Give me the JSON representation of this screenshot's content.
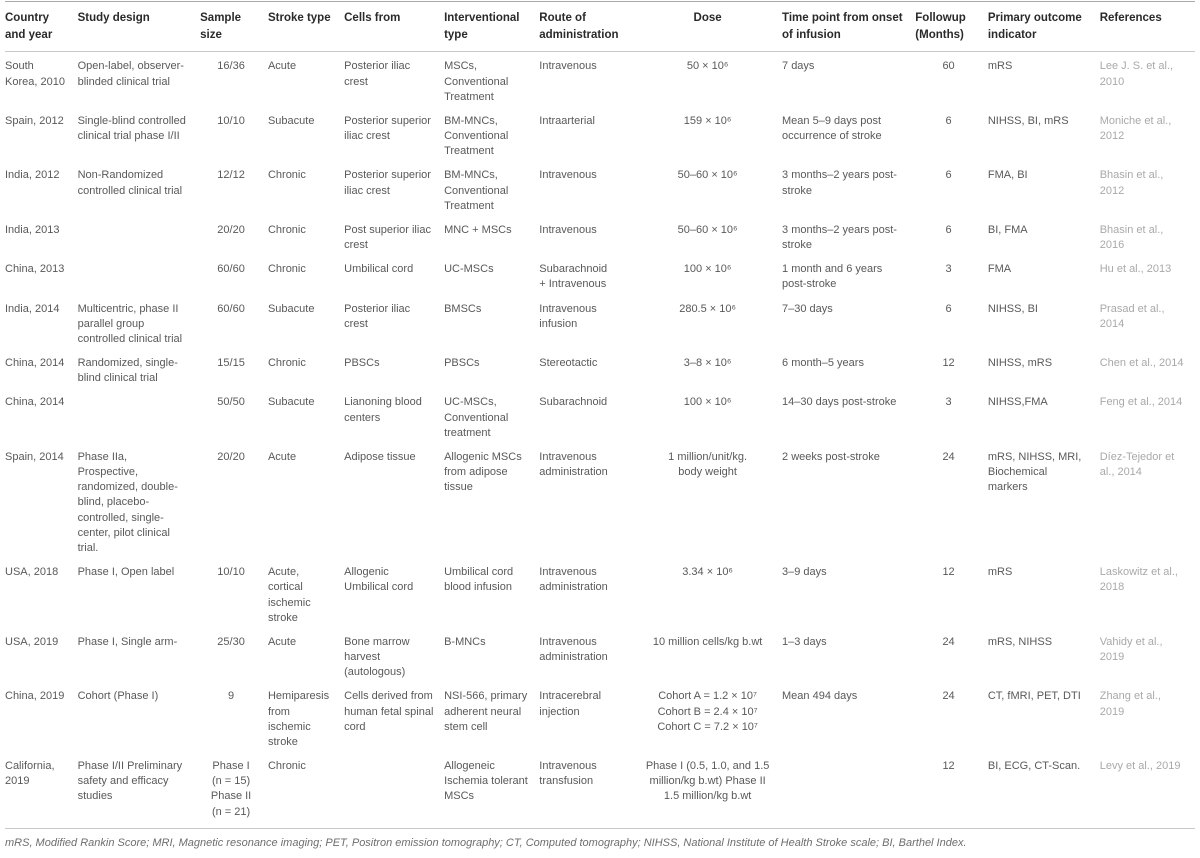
{
  "table": {
    "columns": [
      {
        "key": "country",
        "label": "Country and year"
      },
      {
        "key": "design",
        "label": "Study design"
      },
      {
        "key": "sample",
        "label": "Sample size"
      },
      {
        "key": "stroke",
        "label": "Stroke type"
      },
      {
        "key": "cells",
        "label": "Cells from"
      },
      {
        "key": "intervention",
        "label": "Interventional type"
      },
      {
        "key": "route",
        "label": "Route of administration"
      },
      {
        "key": "dose",
        "label": "Dose"
      },
      {
        "key": "time",
        "label": "Time point from onset of infusion"
      },
      {
        "key": "followup",
        "label": "Followup (Months)"
      },
      {
        "key": "outcome",
        "label": "Primary outcome indicator"
      },
      {
        "key": "reference",
        "label": "References"
      }
    ],
    "rows": [
      {
        "country": "South Korea, 2010",
        "design": "Open-label, observer-blinded clinical trial",
        "sample": "16/36",
        "stroke": "Acute",
        "cells": "Posterior iliac crest",
        "intervention": "MSCs, Conventional Treatment",
        "route": "Intravenous",
        "dose": "50 × 10⁶",
        "time": "7 days",
        "followup": "60",
        "outcome": "mRS",
        "reference": "Lee J. S. et al., 2010"
      },
      {
        "country": "Spain, 2012",
        "design": "Single-blind controlled clinical trial phase I/II",
        "sample": "10/10",
        "stroke": "Subacute",
        "cells": "Posterior superior iliac crest",
        "intervention": "BM-MNCs, Conventional Treatment",
        "route": "Intraarterial",
        "dose": "159 × 10⁶",
        "time": "Mean 5–9 days post occurrence of stroke",
        "followup": "6",
        "outcome": "NIHSS, BI, mRS",
        "reference": "Moniche et al., 2012"
      },
      {
        "country": "India, 2012",
        "design": "Non-Randomized controlled clinical trial",
        "sample": "12/12",
        "stroke": "Chronic",
        "cells": "Posterior superior iliac crest",
        "intervention": "BM-MNCs, Conventional Treatment",
        "route": "Intravenous",
        "dose": "50–60 × 10⁶",
        "time": "3 months–2 years post-stroke",
        "followup": "6",
        "outcome": "FMA, BI",
        "reference": "Bhasin et al., 2012"
      },
      {
        "country": "India, 2013",
        "design": "",
        "sample": "20/20",
        "stroke": "Chronic",
        "cells": "Post superior iliac crest",
        "intervention": "MNC + MSCs",
        "route": "Intravenous",
        "dose": "50–60 × 10⁶",
        "time": "3 months–2 years post-stroke",
        "followup": "6",
        "outcome": "BI, FMA",
        "reference": "Bhasin et al., 2016"
      },
      {
        "country": "China, 2013",
        "design": "",
        "sample": "60/60",
        "stroke": "Chronic",
        "cells": "Umbilical cord",
        "intervention": "UC-MSCs",
        "route": "Subarachnoid\n+ Intravenous",
        "dose": "100 × 10⁶",
        "time": "1 month and 6 years post-stroke",
        "followup": "3",
        "outcome": "FMA",
        "reference": "Hu et al., 2013"
      },
      {
        "country": "India, 2014",
        "design": "Multicentric, phase II parallel group controlled clinical trial",
        "sample": "60/60",
        "stroke": "Subacute",
        "cells": "Posterior iliac crest",
        "intervention": "BMSCs",
        "route": "Intravenous infusion",
        "dose": "280.5 × 10⁶",
        "time": "7–30 days",
        "followup": "6",
        "outcome": "NIHSS, BI",
        "reference": "Prasad et al., 2014"
      },
      {
        "country": "China, 2014",
        "design": "Randomized, single-blind clinical trial",
        "sample": "15/15",
        "stroke": "Chronic",
        "cells": "PBSCs",
        "intervention": "PBSCs",
        "route": "Stereotactic",
        "dose": "3–8 × 10⁶",
        "time": "6 month–5 years",
        "followup": "12",
        "outcome": "NIHSS, mRS",
        "reference": "Chen et al., 2014"
      },
      {
        "country": "China, 2014",
        "design": "",
        "sample": "50/50",
        "stroke": "Subacute",
        "cells": "Lianoning blood centers",
        "intervention": "UC-MSCs, Conventional treatment",
        "route": "Subarachnoid",
        "dose": "100 × 10⁶",
        "time": "14–30 days post-stroke",
        "followup": "3",
        "outcome": "NIHSS,FMA",
        "reference": "Feng et al., 2014"
      },
      {
        "country": "Spain, 2014",
        "design": "Phase IIa, Prospective, randomized, double-blind, placebo-controlled, single-center, pilot clinical trial.",
        "sample": "20/20",
        "stroke": "Acute",
        "cells": "Adipose tissue",
        "intervention": "Allogenic MSCs from adipose tissue",
        "route": "Intravenous administration",
        "dose": "1 million/unit/kg.\nbody weight",
        "time": "2 weeks post-stroke",
        "followup": "24",
        "outcome": "mRS, NIHSS, MRI, Biochemical markers",
        "reference": "Díez-Tejedor et al., 2014"
      },
      {
        "country": "USA, 2018",
        "design": "Phase I, Open label",
        "sample": "10/10",
        "stroke": "Acute, cortical ischemic stroke",
        "cells": "Allogenic Umbilical cord",
        "intervention": "Umbilical cord blood infusion",
        "route": "Intravenous administration",
        "dose": "3.34 × 10⁶",
        "time": "3–9 days",
        "followup": "12",
        "outcome": "mRS",
        "reference": "Laskowitz et al., 2018"
      },
      {
        "country": "USA, 2019",
        "design": "Phase I, Single arm-",
        "sample": "25/30",
        "stroke": "Acute",
        "cells": "Bone marrow harvest (autologous)",
        "intervention": "B-MNCs",
        "route": "Intravenous administration",
        "dose": "10 million cells/kg b.wt",
        "time": "1–3 days",
        "followup": "24",
        "outcome": "mRS, NIHSS",
        "reference": "Vahidy et al., 2019"
      },
      {
        "country": "China, 2019",
        "design": "Cohort (Phase I)",
        "sample": "9",
        "stroke": "Hemiparesis from ischemic stroke",
        "cells": "Cells derived from human fetal spinal cord",
        "intervention": "NSI-566, primary adherent neural stem cell",
        "route": "Intracerebral injection",
        "dose": "Cohort A = 1.2 × 10⁷\nCohort B = 2.4 × 10⁷\nCohort C = 7.2 × 10⁷",
        "time": "Mean 494 days",
        "followup": "24",
        "outcome": "CT, fMRI, PET, DTI",
        "reference": "Zhang et al., 2019"
      },
      {
        "country": "California, 2019",
        "design": "Phase I/II Preliminary safety and efficacy studies",
        "sample": "Phase I\n(n = 15)\nPhase II\n(n = 21)",
        "stroke": "Chronic",
        "cells": "",
        "intervention": "Allogeneic Ischemia tolerant MSCs",
        "route": "Intravenous transfusion",
        "dose": "Phase I (0.5, 1.0, and 1.5\nmillion/kg b.wt) Phase II\n1.5 million/kg b.wt",
        "time": "",
        "followup": "12",
        "outcome": "BI, ECG, CT-Scan.",
        "reference": "Levy et al., 2019"
      }
    ]
  },
  "footnote": "mRS, Modified Rankin Score; MRI, Magnetic resonance imaging; PET, Positron emission tomography; CT, Computed tomography; NIHSS, National Institute of Health Stroke scale; BI, Barthel Index."
}
